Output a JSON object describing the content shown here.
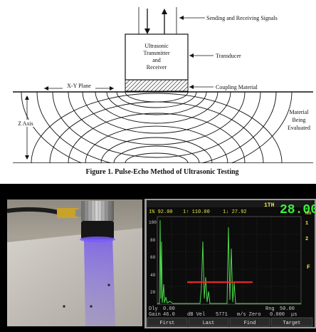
{
  "diagram": {
    "labels": {
      "signals": "Sending and Receiving Signals",
      "transducer_box": [
        "Ultrasonic",
        "Transmitter",
        "and",
        "Receiver"
      ],
      "transducer": "Transducer",
      "coupling": "Coupling Material",
      "xy_plane": "X-Y Plane",
      "z_axis": "Z Axis",
      "material": [
        "Material",
        "Being",
        "Evaluated"
      ]
    },
    "caption": "Figure 1.  Pulse-Echo Method of Ultrasonic Testing"
  },
  "scope": {
    "gate_label": "1TH",
    "big_reading": "28.00",
    "unit": "mm",
    "top_readouts": [
      "1% 92.00",
      "1↑ 110.00",
      "1↓ 27.92"
    ],
    "y_ticks": [
      "100",
      "80",
      "60",
      "40",
      "20"
    ],
    "side_labels": [
      "1",
      "2",
      "F"
    ],
    "bottom_rows": [
      [
        "Dly",
        "0.00",
        "",
        "",
        "Rng",
        "50.00"
      ],
      [
        "Gain",
        "46.0",
        "dB Vel",
        "5771",
        "m/s Zero",
        "0.000",
        "μs"
      ]
    ],
    "soft_keys": [
      "First",
      "Last",
      "Find",
      "Target"
    ],
    "colors": {
      "trace": "#4ad84a",
      "gate": "#e02828",
      "screen": "#0c0c0c",
      "text_yellow": "#e8e84a",
      "green": "#3cf03c"
    }
  },
  "photo": {
    "colors": {
      "probe_glow": "#6a4cf0",
      "surface": "#bdb8b2"
    }
  }
}
